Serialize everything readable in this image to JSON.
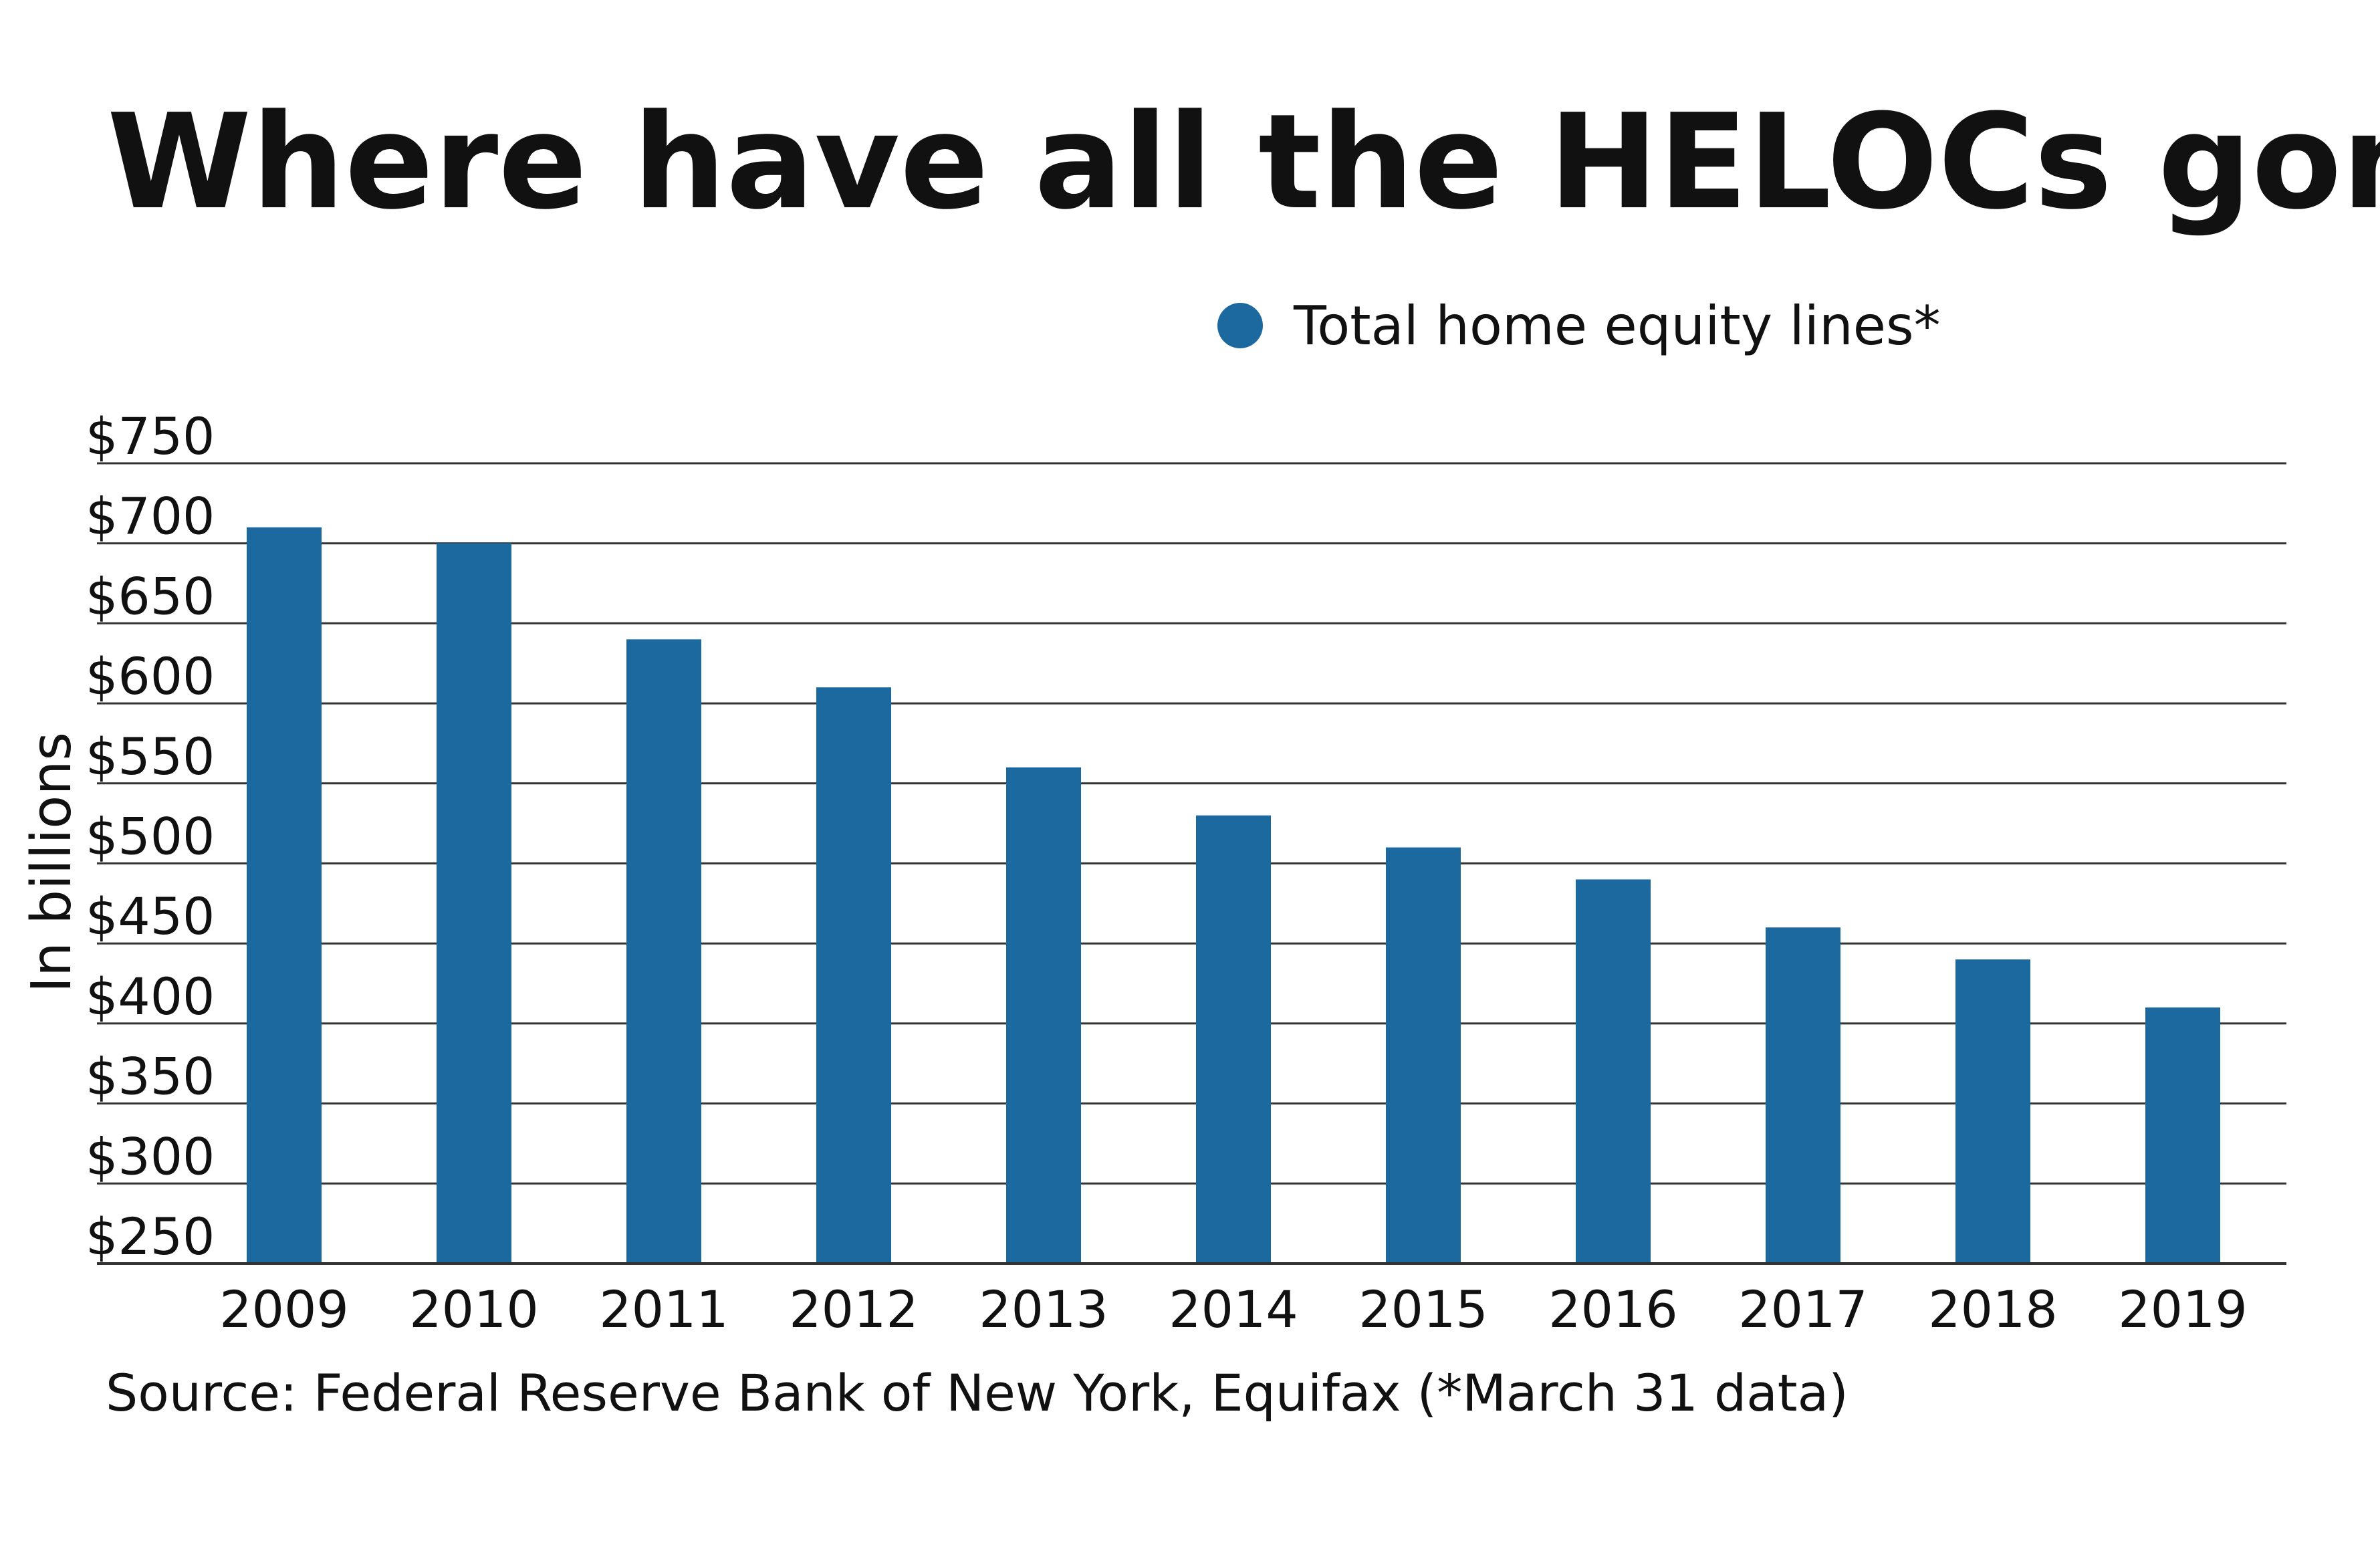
{
  "chart_data": {
    "type": "bar",
    "title": "Where have all the HELOCs gone?",
    "ylabel": "In billions",
    "xlabel": "",
    "source": "Source: Federal Reserve Bank of New York, Equifax (*March 31 data)",
    "legend": {
      "position": "top-right",
      "entries": [
        "Total home equity lines*"
      ]
    },
    "categories": [
      "2009",
      "2010",
      "2011",
      "2012",
      "2013",
      "2014",
      "2015",
      "2016",
      "2017",
      "2018",
      "2019"
    ],
    "series": [
      {
        "name": "Total home equity lines*",
        "color": "#1c69a0",
        "values": [
          710,
          700,
          640,
          610,
          560,
          530,
          510,
          490,
          460,
          440,
          410
        ]
      }
    ],
    "ylim": [
      250,
      750
    ],
    "yticks": [
      250,
      300,
      350,
      400,
      450,
      500,
      550,
      600,
      650,
      700,
      750
    ],
    "ytick_labels": [
      "$250",
      "$300",
      "$350",
      "$400",
      "$450",
      "$500",
      "$550",
      "$600",
      "$650",
      "$700",
      "$750"
    ],
    "grid": true,
    "colors": {
      "bar": "#1c69a0",
      "grid": "#333333",
      "text": "#111111"
    }
  }
}
